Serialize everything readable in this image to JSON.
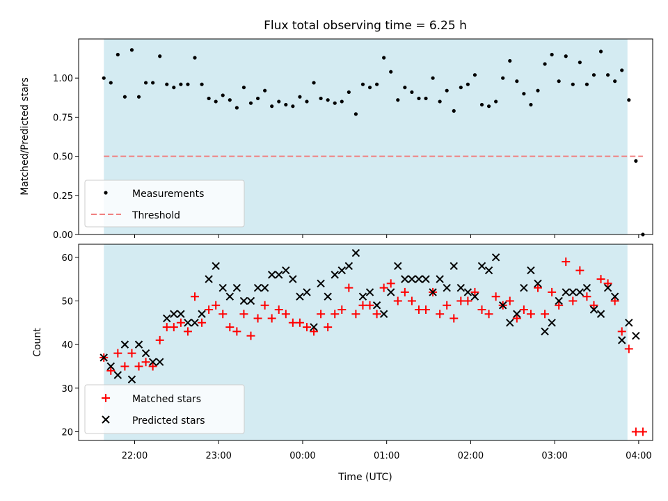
{
  "chart_data": [
    {
      "type": "scatter",
      "title": "Flux total observing time = 6.25 h",
      "xlabel": "",
      "ylabel": "Matched/Predicted stars",
      "ylim": [
        0,
        1.25
      ],
      "yticks": [
        0.0,
        0.25,
        0.5,
        0.75,
        1.0
      ],
      "ytick_labels": [
        "0.00",
        "0.25",
        "0.50",
        "0.75",
        "1.00"
      ],
      "shaded_span": [
        "21:38",
        "03:52"
      ],
      "shade_color": "#d4ebf2",
      "threshold": {
        "name": "Threshold",
        "value": 0.5,
        "x_range": [
          "21:38",
          "04:03"
        ],
        "color": "#f08080"
      },
      "legend": {
        "placement": "lower-left",
        "entries": [
          "Measurements",
          "Threshold"
        ]
      },
      "series": [
        {
          "name": "Measurements",
          "color": "#000000",
          "points": [
            [
              "21:38",
              1.0
            ],
            [
              "21:43",
              0.97
            ],
            [
              "21:48",
              1.15
            ],
            [
              "21:53",
              0.88
            ],
            [
              "21:58",
              1.18
            ],
            [
              "22:03",
              0.88
            ],
            [
              "22:08",
              0.97
            ],
            [
              "22:13",
              0.97
            ],
            [
              "22:18",
              1.14
            ],
            [
              "22:23",
              0.96
            ],
            [
              "22:28",
              0.94
            ],
            [
              "22:33",
              0.96
            ],
            [
              "22:38",
              0.96
            ],
            [
              "22:43",
              1.13
            ],
            [
              "22:48",
              0.96
            ],
            [
              "22:53",
              0.87
            ],
            [
              "22:58",
              0.85
            ],
            [
              "23:03",
              0.89
            ],
            [
              "23:08",
              0.86
            ],
            [
              "23:13",
              0.81
            ],
            [
              "23:18",
              0.94
            ],
            [
              "23:23",
              0.84
            ],
            [
              "23:28",
              0.87
            ],
            [
              "23:33",
              0.92
            ],
            [
              "23:38",
              0.82
            ],
            [
              "23:43",
              0.85
            ],
            [
              "23:48",
              0.83
            ],
            [
              "23:53",
              0.82
            ],
            [
              "23:58",
              0.88
            ],
            [
              "00:03",
              0.85
            ],
            [
              "00:08",
              0.97
            ],
            [
              "00:13",
              0.87
            ],
            [
              "00:18",
              0.86
            ],
            [
              "00:23",
              0.84
            ],
            [
              "00:28",
              0.85
            ],
            [
              "00:33",
              0.91
            ],
            [
              "00:38",
              0.77
            ],
            [
              "00:43",
              0.96
            ],
            [
              "00:48",
              0.94
            ],
            [
              "00:53",
              0.96
            ],
            [
              "00:58",
              1.13
            ],
            [
              "01:03",
              1.04
            ],
            [
              "01:08",
              0.86
            ],
            [
              "01:13",
              0.94
            ],
            [
              "01:18",
              0.91
            ],
            [
              "01:23",
              0.87
            ],
            [
              "01:28",
              0.87
            ],
            [
              "01:33",
              1.0
            ],
            [
              "01:38",
              0.85
            ],
            [
              "01:43",
              0.92
            ],
            [
              "01:48",
              0.79
            ],
            [
              "01:53",
              0.94
            ],
            [
              "01:58",
              0.96
            ],
            [
              "02:03",
              1.02
            ],
            [
              "02:08",
              0.83
            ],
            [
              "02:13",
              0.82
            ],
            [
              "02:18",
              0.85
            ],
            [
              "02:23",
              1.0
            ],
            [
              "02:28",
              1.11
            ],
            [
              "02:33",
              0.98
            ],
            [
              "02:38",
              0.9
            ],
            [
              "02:43",
              0.83
            ],
            [
              "02:48",
              0.92
            ],
            [
              "02:53",
              1.09
            ],
            [
              "02:58",
              1.15
            ],
            [
              "03:03",
              0.98
            ],
            [
              "03:08",
              1.14
            ],
            [
              "03:13",
              0.96
            ],
            [
              "03:18",
              1.1
            ],
            [
              "03:23",
              0.96
            ],
            [
              "03:28",
              1.02
            ],
            [
              "03:33",
              1.17
            ],
            [
              "03:38",
              1.02
            ],
            [
              "03:43",
              0.98
            ],
            [
              "03:48",
              1.05
            ],
            [
              "03:53",
              0.86
            ],
            [
              "03:58",
              0.47
            ],
            [
              "04:03",
              0.0
            ]
          ]
        }
      ]
    },
    {
      "type": "scatter",
      "title": "",
      "xlabel": "Time (UTC)",
      "ylabel": "Count",
      "ylim": [
        18,
        63
      ],
      "xlim": [
        "21:20",
        "04:10"
      ],
      "yticks": [
        20,
        30,
        40,
        50,
        60
      ],
      "ytick_labels": [
        "20",
        "30",
        "40",
        "50",
        "60"
      ],
      "xticks": [
        "22:00",
        "23:00",
        "00:00",
        "01:00",
        "02:00",
        "03:00",
        "04:00"
      ],
      "xtick_labels": [
        "22:00",
        "23:00",
        "00:00",
        "01:00",
        "02:00",
        "03:00",
        "04:00"
      ],
      "shaded_span": [
        "21:38",
        "03:52"
      ],
      "shade_color": "#d4ebf2",
      "legend": {
        "placement": "lower-left",
        "entries": [
          "Matched stars",
          "Predicted stars"
        ]
      },
      "series": [
        {
          "name": "Matched stars",
          "marker": "plus",
          "color": "#ff0000",
          "points": [
            [
              "21:38",
              37
            ],
            [
              "21:43",
              34
            ],
            [
              "21:48",
              38
            ],
            [
              "21:53",
              35
            ],
            [
              "21:58",
              38
            ],
            [
              "22:03",
              35
            ],
            [
              "22:08",
              36
            ],
            [
              "22:13",
              35
            ],
            [
              "22:18",
              41
            ],
            [
              "22:23",
              44
            ],
            [
              "22:28",
              44
            ],
            [
              "22:33",
              45
            ],
            [
              "22:38",
              43
            ],
            [
              "22:43",
              51
            ],
            [
              "22:48",
              45
            ],
            [
              "22:53",
              48
            ],
            [
              "22:58",
              49
            ],
            [
              "23:03",
              47
            ],
            [
              "23:08",
              44
            ],
            [
              "23:13",
              43
            ],
            [
              "23:18",
              47
            ],
            [
              "23:23",
              42
            ],
            [
              "23:28",
              46
            ],
            [
              "23:33",
              49
            ],
            [
              "23:38",
              46
            ],
            [
              "23:43",
              48
            ],
            [
              "23:48",
              47
            ],
            [
              "23:53",
              45
            ],
            [
              "23:58",
              45
            ],
            [
              "00:03",
              44
            ],
            [
              "00:08",
              43
            ],
            [
              "00:13",
              47
            ],
            [
              "00:18",
              44
            ],
            [
              "00:23",
              47
            ],
            [
              "00:28",
              48
            ],
            [
              "00:33",
              53
            ],
            [
              "00:38",
              47
            ],
            [
              "00:43",
              49
            ],
            [
              "00:48",
              49
            ],
            [
              "00:53",
              47
            ],
            [
              "00:58",
              53
            ],
            [
              "01:03",
              54
            ],
            [
              "01:08",
              50
            ],
            [
              "01:13",
              52
            ],
            [
              "01:18",
              50
            ],
            [
              "01:23",
              48
            ],
            [
              "01:28",
              48
            ],
            [
              "01:33",
              52
            ],
            [
              "01:38",
              47
            ],
            [
              "01:43",
              49
            ],
            [
              "01:48",
              46
            ],
            [
              "01:53",
              50
            ],
            [
              "01:58",
              50
            ],
            [
              "02:03",
              52
            ],
            [
              "02:08",
              48
            ],
            [
              "02:13",
              47
            ],
            [
              "02:18",
              51
            ],
            [
              "02:23",
              49
            ],
            [
              "02:28",
              50
            ],
            [
              "02:33",
              46
            ],
            [
              "02:38",
              48
            ],
            [
              "02:43",
              47
            ],
            [
              "02:48",
              53
            ],
            [
              "02:53",
              47
            ],
            [
              "02:58",
              52
            ],
            [
              "03:03",
              49
            ],
            [
              "03:08",
              59
            ],
            [
              "03:13",
              50
            ],
            [
              "03:18",
              57
            ],
            [
              "03:23",
              51
            ],
            [
              "03:28",
              49
            ],
            [
              "03:33",
              55
            ],
            [
              "03:38",
              54
            ],
            [
              "03:43",
              50
            ],
            [
              "03:48",
              43
            ],
            [
              "03:53",
              39
            ],
            [
              "03:58",
              20
            ],
            [
              "04:03",
              20
            ]
          ]
        },
        {
          "name": "Predicted stars",
          "marker": "x",
          "color": "#000000",
          "points": [
            [
              "21:38",
              37
            ],
            [
              "21:43",
              35
            ],
            [
              "21:48",
              33
            ],
            [
              "21:53",
              40
            ],
            [
              "21:58",
              32
            ],
            [
              "22:03",
              40
            ],
            [
              "22:08",
              38
            ],
            [
              "22:13",
              36
            ],
            [
              "22:18",
              36
            ],
            [
              "22:23",
              46
            ],
            [
              "22:28",
              47
            ],
            [
              "22:33",
              47
            ],
            [
              "22:38",
              45
            ],
            [
              "22:43",
              45
            ],
            [
              "22:48",
              47
            ],
            [
              "22:53",
              55
            ],
            [
              "22:58",
              58
            ],
            [
              "23:03",
              53
            ],
            [
              "23:08",
              51
            ],
            [
              "23:13",
              53
            ],
            [
              "23:18",
              50
            ],
            [
              "23:23",
              50
            ],
            [
              "23:28",
              53
            ],
            [
              "23:33",
              53
            ],
            [
              "23:38",
              56
            ],
            [
              "23:43",
              56
            ],
            [
              "23:48",
              57
            ],
            [
              "23:53",
              55
            ],
            [
              "23:58",
              51
            ],
            [
              "00:03",
              52
            ],
            [
              "00:08",
              44
            ],
            [
              "00:13",
              54
            ],
            [
              "00:18",
              51
            ],
            [
              "00:23",
              56
            ],
            [
              "00:28",
              57
            ],
            [
              "00:33",
              58
            ],
            [
              "00:38",
              61
            ],
            [
              "00:43",
              51
            ],
            [
              "00:48",
              52
            ],
            [
              "00:53",
              49
            ],
            [
              "00:58",
              47
            ],
            [
              "01:03",
              52
            ],
            [
              "01:08",
              58
            ],
            [
              "01:13",
              55
            ],
            [
              "01:18",
              55
            ],
            [
              "01:23",
              55
            ],
            [
              "01:28",
              55
            ],
            [
              "01:33",
              52
            ],
            [
              "01:38",
              55
            ],
            [
              "01:43",
              53
            ],
            [
              "01:48",
              58
            ],
            [
              "01:53",
              53
            ],
            [
              "01:58",
              52
            ],
            [
              "02:03",
              51
            ],
            [
              "02:08",
              58
            ],
            [
              "02:13",
              57
            ],
            [
              "02:18",
              60
            ],
            [
              "02:23",
              49
            ],
            [
              "02:28",
              45
            ],
            [
              "02:33",
              47
            ],
            [
              "02:38",
              53
            ],
            [
              "02:43",
              57
            ],
            [
              "02:48",
              54
            ],
            [
              "02:53",
              43
            ],
            [
              "02:58",
              45
            ],
            [
              "03:03",
              50
            ],
            [
              "03:08",
              52
            ],
            [
              "03:13",
              52
            ],
            [
              "03:18",
              52
            ],
            [
              "03:23",
              53
            ],
            [
              "03:28",
              48
            ],
            [
              "03:33",
              47
            ],
            [
              "03:38",
              53
            ],
            [
              "03:43",
              51
            ],
            [
              "03:48",
              41
            ],
            [
              "03:53",
              45
            ],
            [
              "03:58",
              42
            ]
          ]
        }
      ]
    }
  ]
}
